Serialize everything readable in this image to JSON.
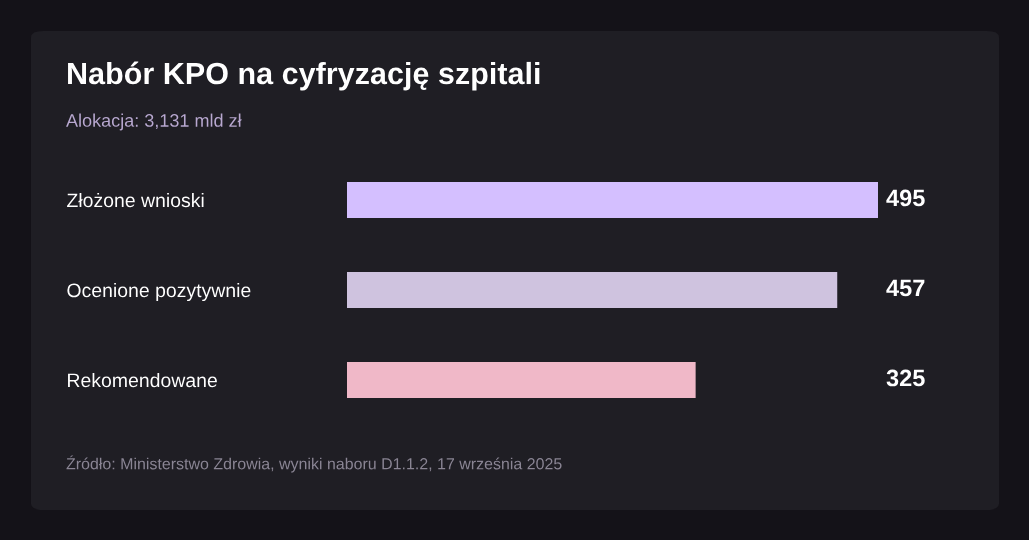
{
  "chart_data": {
    "type": "bar",
    "orientation": "horizontal",
    "title": "Nabór KPO na cyfryzację szpitali",
    "subtitle": "Alokacja: 3,131 mld zł",
    "categories": [
      "Złożone wnioski",
      "Ocenione pozytywnie",
      "Rekomendowane"
    ],
    "values": [
      495,
      457,
      325
    ],
    "colors": [
      "#d4bfff",
      "#cfc3df",
      "#f0b8c8"
    ],
    "data_labels": true,
    "tick_labels": "y",
    "annotations": [
      "Źródło: Ministerstwo Zdrowia, wyniki naboru D1.1.2, 17 września 2025"
    ]
  }
}
